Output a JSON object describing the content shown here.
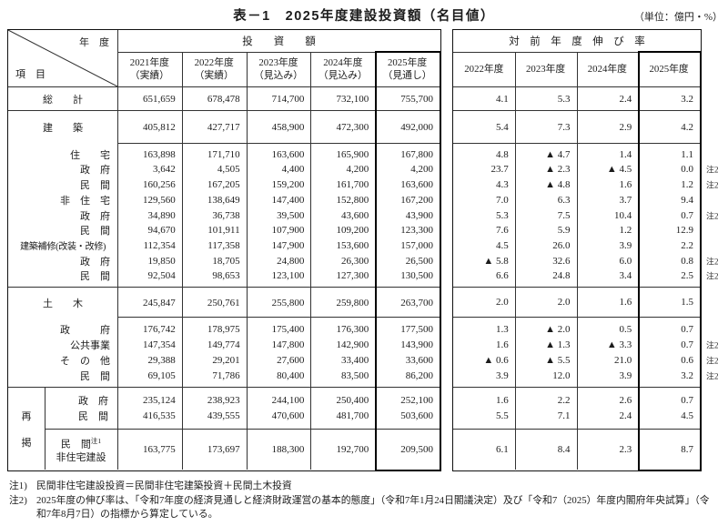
{
  "title": "表－1　2025年度建設投資額（名目値）",
  "unit_label": "（単位：億円・%）",
  "left_table": {
    "corner_top": "年　度",
    "corner_bottom": "項　目",
    "span_header": "投　　資　　額",
    "col_headers": [
      {
        "year": "2021年度",
        "kind": "（実績）"
      },
      {
        "year": "2022年度",
        "kind": "（実績）"
      },
      {
        "year": "2023年度",
        "kind": "（見込み）"
      },
      {
        "year": "2024年度",
        "kind": "（見込み）"
      },
      {
        "year": "2025年度",
        "kind": "（見通し）"
      }
    ]
  },
  "right_table": {
    "span_header": "対　前　年　度　伸　び　率",
    "col_headers": [
      "2022年度",
      "2023年度",
      "2024年度",
      "2025年度"
    ]
  },
  "saikei_label": [
    "再",
    "掲"
  ],
  "saikei_sub_label": {
    "line1": "民　間",
    "sup": "注1",
    "line2": "非住宅建設"
  },
  "rows": [
    {
      "label": "総　　計",
      "style": "center",
      "invest": [
        "651,659",
        "678,478",
        "714,700",
        "732,100",
        "755,700"
      ],
      "growth": [
        "4.1",
        "5.3",
        "2.4",
        "3.2"
      ],
      "note": ""
    },
    {
      "label": "建　　築",
      "style": "center",
      "invest": [
        "405,812",
        "427,717",
        "458,900",
        "472,300",
        "492,000"
      ],
      "growth": [
        "5.4",
        "7.3",
        "2.9",
        "4.2"
      ],
      "note": ""
    },
    {
      "label": "住　　宅",
      "style": "right",
      "invest": [
        "163,898",
        "171,710",
        "163,600",
        "165,900",
        "167,800"
      ],
      "growth": [
        "4.8",
        "▲ 4.7",
        "1.4",
        "1.1"
      ],
      "note": ""
    },
    {
      "label": "政　府",
      "style": "right",
      "invest": [
        "3,642",
        "4,505",
        "4,400",
        "4,200",
        "4,200"
      ],
      "growth": [
        "23.7",
        "▲ 2.3",
        "▲ 4.5",
        "0.0"
      ],
      "note": "注2"
    },
    {
      "label": "民　間",
      "style": "right",
      "invest": [
        "160,256",
        "167,205",
        "159,200",
        "161,700",
        "163,600"
      ],
      "growth": [
        "4.3",
        "▲ 4.8",
        "1.6",
        "1.2"
      ],
      "note": "注2"
    },
    {
      "label": "非　住　宅",
      "style": "right",
      "invest": [
        "129,560",
        "138,649",
        "147,400",
        "152,800",
        "167,200"
      ],
      "growth": [
        "7.0",
        "6.3",
        "3.7",
        "9.4"
      ],
      "note": ""
    },
    {
      "label": "政　府",
      "style": "right",
      "invest": [
        "34,890",
        "36,738",
        "39,500",
        "43,600",
        "43,900"
      ],
      "growth": [
        "5.3",
        "7.5",
        "10.4",
        "0.7"
      ],
      "note": "注2"
    },
    {
      "label": "民　間",
      "style": "right",
      "invest": [
        "94,670",
        "101,911",
        "107,900",
        "109,200",
        "123,300"
      ],
      "growth": [
        "7.6",
        "5.9",
        "1.2",
        "12.9"
      ],
      "note": ""
    },
    {
      "label": "建築補修(改装・改修)",
      "style": "long",
      "invest": [
        "112,354",
        "117,358",
        "147,900",
        "153,600",
        "157,000"
      ],
      "growth": [
        "4.5",
        "26.0",
        "3.9",
        "2.2"
      ],
      "note": ""
    },
    {
      "label": "政　府",
      "style": "right",
      "invest": [
        "19,850",
        "18,705",
        "24,800",
        "26,300",
        "26,500"
      ],
      "growth": [
        "▲ 5.8",
        "32.6",
        "6.0",
        "0.8"
      ],
      "note": "注2"
    },
    {
      "label": "民　間",
      "style": "right",
      "invest": [
        "92,504",
        "98,653",
        "123,100",
        "127,300",
        "130,500"
      ],
      "growth": [
        "6.6",
        "24.8",
        "3.4",
        "2.5"
      ],
      "note": "注2"
    },
    {
      "label": "土　　木",
      "style": "center",
      "invest": [
        "245,847",
        "250,761",
        "255,800",
        "259,800",
        "263,700"
      ],
      "growth": [
        "2.0",
        "2.0",
        "1.6",
        "1.5"
      ],
      "note": ""
    },
    {
      "label": "政　　　府",
      "style": "right",
      "invest": [
        "176,742",
        "178,975",
        "175,400",
        "176,300",
        "177,500"
      ],
      "growth": [
        "1.3",
        "▲ 2.0",
        "0.5",
        "0.7"
      ],
      "note": ""
    },
    {
      "label": "公共事業",
      "style": "right",
      "invest": [
        "147,354",
        "149,774",
        "147,800",
        "142,900",
        "143,900"
      ],
      "growth": [
        "1.6",
        "▲ 1.3",
        "▲ 3.3",
        "0.7"
      ],
      "note": "注2"
    },
    {
      "label": "そ　の　他",
      "style": "right",
      "invest": [
        "29,388",
        "29,201",
        "27,600",
        "33,400",
        "33,600"
      ],
      "growth": [
        "▲ 0.6",
        "▲ 5.5",
        "21.0",
        "0.6"
      ],
      "note": "注2"
    },
    {
      "label": "民　間",
      "style": "right",
      "invest": [
        "69,105",
        "71,786",
        "80,400",
        "83,500",
        "86,200"
      ],
      "growth": [
        "3.9",
        "12.0",
        "3.9",
        "3.2"
      ],
      "note": "注2"
    },
    {
      "label": "政　府",
      "style": "right",
      "invest": [
        "235,124",
        "238,923",
        "244,100",
        "250,400",
        "252,100"
      ],
      "growth": [
        "1.6",
        "2.2",
        "2.6",
        "0.7"
      ],
      "note": ""
    },
    {
      "label": "民　間",
      "style": "right",
      "invest": [
        "416,535",
        "439,555",
        "470,600",
        "481,700",
        "503,600"
      ],
      "growth": [
        "5.5",
        "7.1",
        "2.4",
        "4.5"
      ],
      "note": ""
    },
    {
      "label": "民間非住宅建設",
      "style": "right",
      "invest": [
        "163,775",
        "173,697",
        "188,300",
        "192,700",
        "209,500"
      ],
      "growth": [
        "6.1",
        "8.4",
        "2.3",
        "8.7"
      ],
      "note": ""
    }
  ],
  "footnotes": [
    {
      "prefix": "注1)",
      "text": "民間非住宅建設投資＝民間非住宅建築投資＋民間土木投資"
    },
    {
      "prefix": "注2)",
      "text": "2025年度の伸び率は、「令和7年度の経済見通しと経済財政運営の基本的態度」（令和7年1月24日閣議決定）及び「令和7（2025）年度内閣府年央試算」（令和7年8月7日）の指標から算定している。"
    }
  ]
}
